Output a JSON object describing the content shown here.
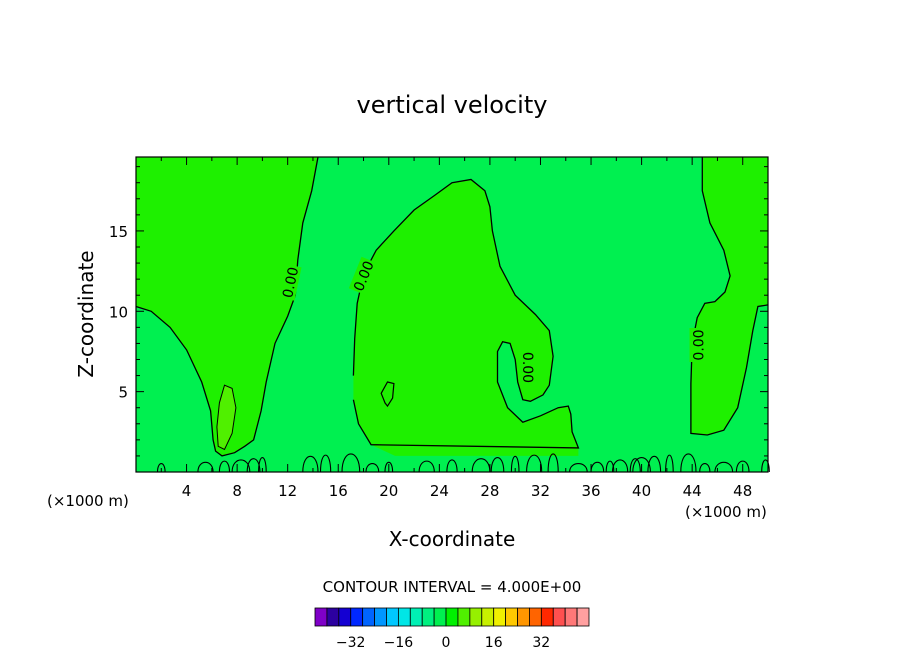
{
  "chart_data": {
    "type": "contour",
    "title": "vertical velocity",
    "xlabel": "X-coordinate",
    "ylabel": "Z-coordinate",
    "x_unit_left": "(×1000 m)",
    "x_unit_right": "(×1000 m)",
    "xlim": [
      0,
      50
    ],
    "ylim": [
      0,
      19.6
    ],
    "x_ticks": [
      4,
      8,
      12,
      16,
      20,
      24,
      28,
      32,
      36,
      40,
      44,
      48
    ],
    "y_ticks": [
      5,
      10,
      15
    ],
    "contour_labels": [
      {
        "text": "0.00",
        "x": 12.2,
        "y": 11.8,
        "angle": -78
      },
      {
        "text": "0.00",
        "x": 18.0,
        "y": 12.2,
        "angle": -68
      },
      {
        "text": "0.00",
        "x": 31.0,
        "y": 6.5,
        "angle": 90
      },
      {
        "text": "0.00",
        "x": 44.5,
        "y": 7.9,
        "angle": -90
      }
    ],
    "contour_interval_text": "CONTOUR INTERVAL = 4.000E+00",
    "colorbar": {
      "colors": [
        "#7f00c8",
        "#2c00a0",
        "#1400d2",
        "#0028ff",
        "#0064ff",
        "#0096ff",
        "#00c8ff",
        "#00e6e6",
        "#00f0b4",
        "#00f080",
        "#00f050",
        "#00f000",
        "#50f000",
        "#96f000",
        "#c8f000",
        "#f0f000",
        "#ffc800",
        "#ff9600",
        "#ff6400",
        "#ff2800",
        "#ff5050",
        "#ff7878",
        "#ffa0a0"
      ],
      "tick_labels": [
        "−32",
        "−16",
        "0",
        "16",
        "32"
      ],
      "tick_values": [
        -32,
        -16,
        0,
        16,
        32
      ],
      "value_min": -44,
      "value_max": 48
    },
    "colors": {
      "zero_band": "#00f050",
      "positive_band": "#1ef000",
      "positive_core": "#50f000"
    }
  }
}
